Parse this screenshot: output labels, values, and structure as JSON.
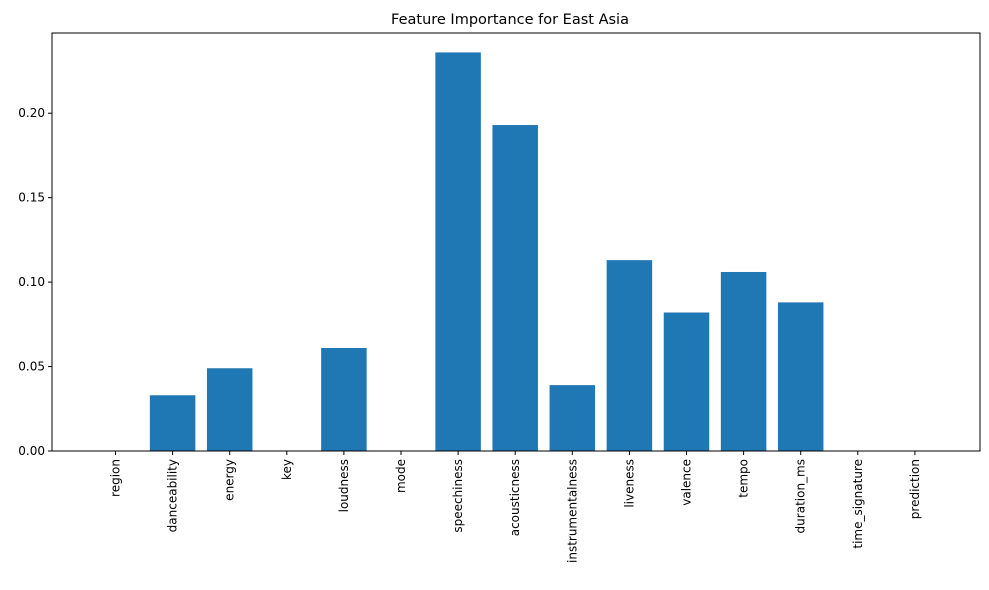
{
  "chart_data": {
    "type": "bar",
    "title": "Feature Importance for East Asia",
    "xlabel": "",
    "ylabel": "",
    "categories": [
      "region",
      "danceability",
      "energy",
      "key",
      "loudness",
      "mode",
      "speechiness",
      "acousticness",
      "instrumentalness",
      "liveness",
      "valence",
      "tempo",
      "duration_ms",
      "time_signature",
      "prediction"
    ],
    "values": [
      0.0,
      0.033,
      0.049,
      0.0,
      0.061,
      0.0,
      0.236,
      0.193,
      0.039,
      0.113,
      0.082,
      0.106,
      0.088,
      0.0,
      0.0
    ],
    "yticks": [
      "0.00",
      "0.05",
      "0.10",
      "0.15",
      "0.20"
    ],
    "ylim": [
      0,
      0.2475
    ],
    "bar_color": "#1f77b4",
    "grid": false,
    "legend": "none"
  }
}
